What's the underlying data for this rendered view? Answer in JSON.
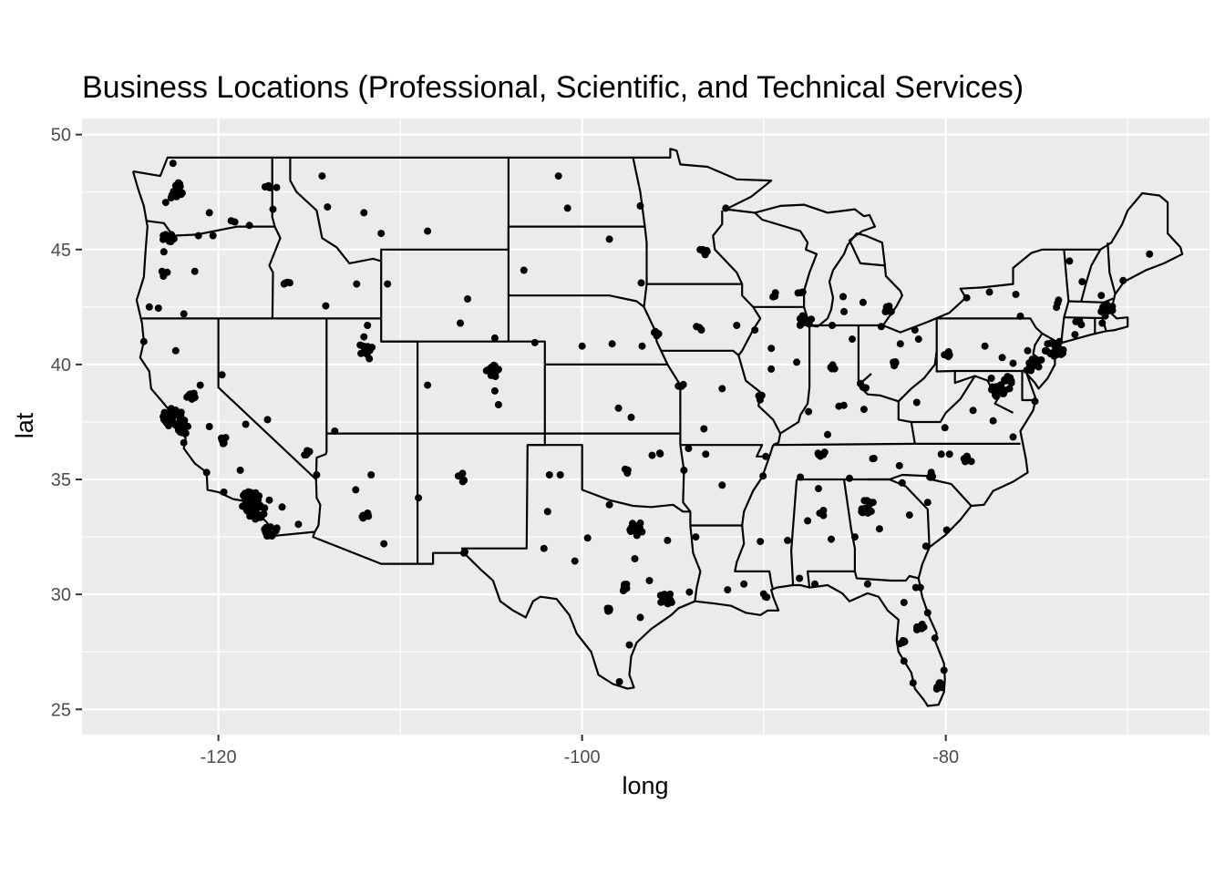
{
  "chart_data": {
    "type": "scatter",
    "title": "Business Locations (Professional, Scientific, and Technical Services)",
    "xlabel": "long",
    "ylabel": "lat",
    "xlim": [
      -127.5,
      -65.5
    ],
    "ylim": [
      23.9,
      50.7
    ],
    "x_ticks": [
      -120,
      -100,
      -80
    ],
    "x_tick_labels": [
      "-120",
      "-100",
      "-80"
    ],
    "y_ticks": [
      25,
      30,
      35,
      40,
      45,
      50
    ],
    "y_tick_labels": [
      "25",
      "30",
      "35",
      "40",
      "45",
      "50"
    ],
    "grid": true,
    "legend": "none",
    "colors": {
      "panel": "#ebebeb",
      "grid": "#ffffff",
      "points": "#000000",
      "borders": "#000000"
    },
    "map_layer": "us-state-borders",
    "clusters": [
      {
        "lon": -122.3,
        "lat": 47.6,
        "n": 14
      },
      {
        "lon": -122.7,
        "lat": 45.5,
        "n": 10
      },
      {
        "lon": -122.5,
        "lat": 37.7,
        "n": 30
      },
      {
        "lon": -121.9,
        "lat": 37.3,
        "n": 16
      },
      {
        "lon": -121.5,
        "lat": 38.6,
        "n": 8
      },
      {
        "lon": -118.2,
        "lat": 34.05,
        "n": 40
      },
      {
        "lon": -117.9,
        "lat": 33.7,
        "n": 22
      },
      {
        "lon": -117.15,
        "lat": 32.8,
        "n": 14
      },
      {
        "lon": -119.8,
        "lat": 36.7,
        "n": 6
      },
      {
        "lon": -112.0,
        "lat": 33.5,
        "n": 8
      },
      {
        "lon": -111.9,
        "lat": 40.7,
        "n": 10
      },
      {
        "lon": -115.1,
        "lat": 36.15,
        "n": 7
      },
      {
        "lon": -104.9,
        "lat": 39.7,
        "n": 12
      },
      {
        "lon": -97.0,
        "lat": 32.85,
        "n": 14
      },
      {
        "lon": -95.4,
        "lat": 29.8,
        "n": 14
      },
      {
        "lon": -97.7,
        "lat": 30.3,
        "n": 8
      },
      {
        "lon": -98.5,
        "lat": 29.45,
        "n": 5
      },
      {
        "lon": -93.3,
        "lat": 44.95,
        "n": 8
      },
      {
        "lon": -87.7,
        "lat": 41.85,
        "n": 14
      },
      {
        "lon": -83.2,
        "lat": 42.4,
        "n": 6
      },
      {
        "lon": -84.4,
        "lat": 33.8,
        "n": 12
      },
      {
        "lon": -80.85,
        "lat": 35.2,
        "n": 5
      },
      {
        "lon": -78.8,
        "lat": 35.85,
        "n": 6
      },
      {
        "lon": -77.1,
        "lat": 38.9,
        "n": 20
      },
      {
        "lon": -76.6,
        "lat": 39.3,
        "n": 6
      },
      {
        "lon": -75.2,
        "lat": 40.0,
        "n": 10
      },
      {
        "lon": -74.0,
        "lat": 40.7,
        "n": 22
      },
      {
        "lon": -71.1,
        "lat": 42.35,
        "n": 14
      },
      {
        "lon": -80.3,
        "lat": 26.0,
        "n": 8
      },
      {
        "lon": -82.5,
        "lat": 27.9,
        "n": 6
      },
      {
        "lon": -81.4,
        "lat": 28.55,
        "n": 5
      },
      {
        "lon": -86.8,
        "lat": 36.15,
        "n": 6
      },
      {
        "lon": -90.2,
        "lat": 38.65,
        "n": 4
      },
      {
        "lon": -94.6,
        "lat": 39.05,
        "n": 4
      },
      {
        "lon": -84.5,
        "lat": 39.1,
        "n": 3
      },
      {
        "lon": -82.95,
        "lat": 40.0,
        "n": 4
      },
      {
        "lon": -86.15,
        "lat": 39.8,
        "n": 4
      },
      {
        "lon": -79.95,
        "lat": 40.45,
        "n": 4
      },
      {
        "lon": -73.8,
        "lat": 42.65,
        "n": 3
      },
      {
        "lon": -72.7,
        "lat": 41.75,
        "n": 4
      },
      {
        "lon": -86.8,
        "lat": 33.5,
        "n": 4
      },
      {
        "lon": -90.05,
        "lat": 29.95,
        "n": 3
      },
      {
        "lon": -106.6,
        "lat": 35.1,
        "n": 4
      },
      {
        "lon": -116.2,
        "lat": 43.6,
        "n": 4
      },
      {
        "lon": -117.4,
        "lat": 47.65,
        "n": 3
      },
      {
        "lon": -122.9,
        "lat": 44.0,
        "n": 3
      },
      {
        "lon": -88.0,
        "lat": 43.05,
        "n": 3
      },
      {
        "lon": -89.4,
        "lat": 43.07,
        "n": 3
      },
      {
        "lon": -96.0,
        "lat": 41.25,
        "n": 3
      },
      {
        "lon": -93.6,
        "lat": 41.6,
        "n": 3
      },
      {
        "lon": -95.95,
        "lat": 36.15,
        "n": 3
      },
      {
        "lon": -97.5,
        "lat": 35.45,
        "n": 3
      },
      {
        "lon": -83.9,
        "lat": 35.95,
        "n": 2
      },
      {
        "lon": -85.7,
        "lat": 38.25,
        "n": 2
      }
    ],
    "points": [
      [
        -124.1,
        41.0
      ],
      [
        -123.8,
        42.5
      ],
      [
        -123.1,
        44.05
      ],
      [
        -121.3,
        44.05
      ],
      [
        -123.0,
        44.9
      ],
      [
        -120.3,
        45.6
      ],
      [
        -119.3,
        46.25
      ],
      [
        -114.0,
        46.85
      ],
      [
        -112.0,
        46.6
      ],
      [
        -108.5,
        45.8
      ],
      [
        -106.7,
        41.8
      ],
      [
        -104.8,
        41.15
      ],
      [
        -104.8,
        38.85
      ],
      [
        -104.6,
        38.25
      ],
      [
        -108.5,
        39.1
      ],
      [
        -110.9,
        32.2
      ],
      [
        -111.6,
        35.2
      ],
      [
        -109.0,
        34.2
      ],
      [
        -106.5,
        31.8
      ],
      [
        -101.9,
        33.6
      ],
      [
        -102.1,
        32.0
      ],
      [
        -101.8,
        35.2
      ],
      [
        -97.3,
        37.7
      ],
      [
        -96.7,
        40.8
      ],
      [
        -98.0,
        38.1
      ],
      [
        -92.3,
        34.75
      ],
      [
        -93.2,
        36.1
      ],
      [
        -92.3,
        38.95
      ],
      [
        -93.3,
        37.2
      ],
      [
        -91.5,
        41.7
      ],
      [
        -90.5,
        41.5
      ],
      [
        -89.6,
        39.8
      ],
      [
        -88.2,
        40.1
      ],
      [
        -89.6,
        40.7
      ],
      [
        -90.2,
        32.3
      ],
      [
        -91.1,
        30.45
      ],
      [
        -93.75,
        32.5
      ],
      [
        -94.1,
        30.1
      ],
      [
        -97.4,
        27.8
      ],
      [
        -96.8,
        29.0
      ],
      [
        -100.4,
        31.45
      ],
      [
        -97.1,
        31.55
      ],
      [
        -97.3,
        32.75
      ],
      [
        -96.3,
        30.6
      ],
      [
        -88.05,
        30.7
      ],
      [
        -86.3,
        32.4
      ],
      [
        -85.0,
        32.5
      ],
      [
        -87.0,
        34.6
      ],
      [
        -84.3,
        30.45
      ],
      [
        -81.65,
        30.3
      ],
      [
        -80.1,
        26.7
      ],
      [
        -81.8,
        26.15
      ],
      [
        -82.3,
        29.65
      ],
      [
        -81.1,
        32.1
      ],
      [
        -79.95,
        32.8
      ],
      [
        -81.0,
        34.0
      ],
      [
        -82.4,
        34.85
      ],
      [
        -79.8,
        36.1
      ],
      [
        -77.4,
        37.55
      ],
      [
        -76.3,
        36.85
      ],
      [
        -78.5,
        38.0
      ],
      [
        -80.05,
        37.25
      ],
      [
        -81.6,
        38.35
      ],
      [
        -82.5,
        40.9
      ],
      [
        -81.5,
        41.1
      ],
      [
        -81.7,
        41.5
      ],
      [
        -83.55,
        41.65
      ],
      [
        -85.6,
        42.3
      ],
      [
        -85.65,
        42.95
      ],
      [
        -84.55,
        42.7
      ],
      [
        -86.25,
        41.7
      ],
      [
        -85.15,
        41.1
      ],
      [
        -87.55,
        37.95
      ],
      [
        -84.5,
        38.05
      ],
      [
        -83.0,
        42.3
      ],
      [
        -77.6,
        43.15
      ],
      [
        -76.15,
        43.05
      ],
      [
        -78.85,
        42.9
      ],
      [
        -75.9,
        42.1
      ],
      [
        -76.9,
        40.3
      ],
      [
        -75.5,
        40.6
      ],
      [
        -76.3,
        40.05
      ],
      [
        -77.85,
        40.8
      ],
      [
        -73.2,
        44.5
      ],
      [
        -72.5,
        43.6
      ],
      [
        -71.45,
        43.0
      ],
      [
        -70.25,
        43.65
      ],
      [
        -68.8,
        44.8
      ],
      [
        -71.4,
        41.8
      ],
      [
        -72.9,
        41.3
      ],
      [
        -73.75,
        41.0
      ],
      [
        -74.4,
        40.9
      ],
      [
        -74.75,
        40.2
      ],
      [
        -75.55,
        39.75
      ],
      [
        -76.5,
        38.95
      ],
      [
        -75.1,
        38.4
      ],
      [
        -77.5,
        39.4
      ],
      [
        -79.0,
        35.9
      ],
      [
        -80.25,
        36.1
      ],
      [
        -82.55,
        35.6
      ],
      [
        -85.3,
        35.05
      ],
      [
        -88.0,
        35.1
      ],
      [
        -90.05,
        35.15
      ],
      [
        -89.9,
        36.0
      ],
      [
        -86.5,
        36.95
      ],
      [
        -87.6,
        33.2
      ],
      [
        -88.7,
        32.35
      ],
      [
        -84.0,
        34.0
      ],
      [
        -83.65,
        32.85
      ],
      [
        -82.0,
        33.45
      ],
      [
        -81.4,
        30.3
      ],
      [
        -82.3,
        27.1
      ],
      [
        -80.6,
        28.1
      ],
      [
        -81.0,
        29.2
      ],
      [
        -87.2,
        30.45
      ],
      [
        -92.0,
        30.2
      ],
      [
        -96.8,
        33.1
      ],
      [
        -95.3,
        32.35
      ],
      [
        -94.4,
        35.4
      ],
      [
        -98.5,
        33.9
      ],
      [
        -101.2,
        35.2
      ],
      [
        -99.7,
        32.45
      ],
      [
        -97.95,
        26.2
      ],
      [
        -106.45,
        31.85
      ],
      [
        -111.75,
        33.4
      ],
      [
        -112.45,
        34.55
      ],
      [
        -114.6,
        35.2
      ],
      [
        -115.6,
        33.05
      ],
      [
        -116.5,
        33.8
      ],
      [
        -117.2,
        34.1
      ],
      [
        -118.8,
        35.4
      ],
      [
        -120.65,
        35.3
      ],
      [
        -119.7,
        34.45
      ],
      [
        -121.9,
        36.6
      ],
      [
        -120.5,
        37.3
      ],
      [
        -121.0,
        39.1
      ],
      [
        -122.35,
        40.6
      ],
      [
        -119.8,
        39.55
      ],
      [
        -118.5,
        37.4
      ],
      [
        -117.3,
        37.6
      ],
      [
        -114.1,
        42.55
      ],
      [
        -112.4,
        43.5
      ],
      [
        -111.05,
        45.7
      ],
      [
        -106.3,
        42.85
      ],
      [
        -110.7,
        43.5
      ],
      [
        -111.8,
        41.7
      ],
      [
        -113.6,
        37.1
      ],
      [
        -111.7,
        40.25
      ],
      [
        -112.0,
        41.2
      ],
      [
        -114.3,
        48.2
      ],
      [
        -116.8,
        47.7
      ],
      [
        -117.0,
        46.75
      ],
      [
        -118.3,
        46.05
      ],
      [
        -120.5,
        46.6
      ],
      [
        -119.1,
        46.2
      ],
      [
        -122.2,
        47.9
      ],
      [
        -122.5,
        48.75
      ],
      [
        -122.9,
        47.05
      ],
      [
        -122.6,
        47.25
      ],
      [
        -121.9,
        42.2
      ],
      [
        -123.3,
        42.45
      ],
      [
        -122.3,
        47.3
      ],
      [
        -121.1,
        45.6
      ],
      [
        -92.1,
        46.8
      ],
      [
        -96.8,
        46.9
      ],
      [
        -96.75,
        43.55
      ],
      [
        -98.5,
        45.45
      ],
      [
        -101.3,
        48.2
      ],
      [
        -100.8,
        46.8
      ],
      [
        -103.2,
        44.1
      ],
      [
        -102.6,
        40.95
      ],
      [
        -100.0,
        40.8
      ],
      [
        -98.35,
        40.9
      ],
      [
        -95.9,
        41.25
      ],
      [
        -94.15,
        36.35
      ]
    ]
  }
}
